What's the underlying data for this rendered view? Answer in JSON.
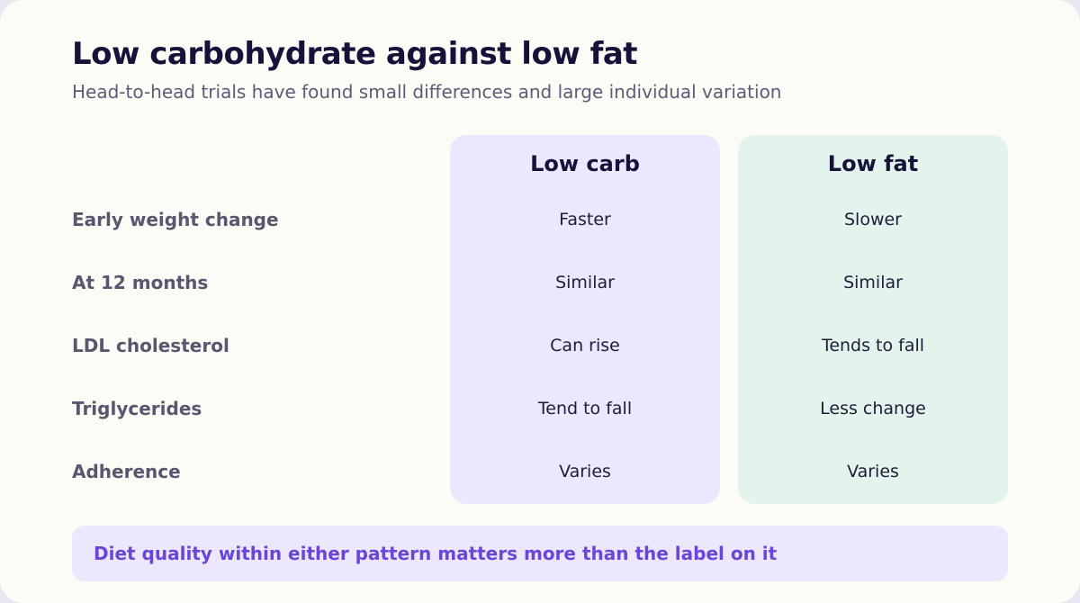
{
  "title": "Low carbohydrate against low fat",
  "subtitle": "Head-to-head trials have found small differences and large individual variation",
  "columns": {
    "low_carb": {
      "heading": "Low carb",
      "values": [
        "Faster",
        "Similar",
        "Can rise",
        "Tend to fall",
        "Varies"
      ]
    },
    "low_fat": {
      "heading": "Low fat",
      "values": [
        "Slower",
        "Similar",
        "Tends to fall",
        "Less change",
        "Varies"
      ]
    }
  },
  "rows": [
    "Early weight change",
    "At 12 months",
    "LDL cholesterol",
    "Triglycerides",
    "Adherence"
  ],
  "note": "Diet quality within either pattern matters more than the label on it",
  "colors": {
    "low_carb_bg": "#ebe7fc",
    "low_fat_bg": "#e3f4ec",
    "accent": "#6a45d8"
  }
}
